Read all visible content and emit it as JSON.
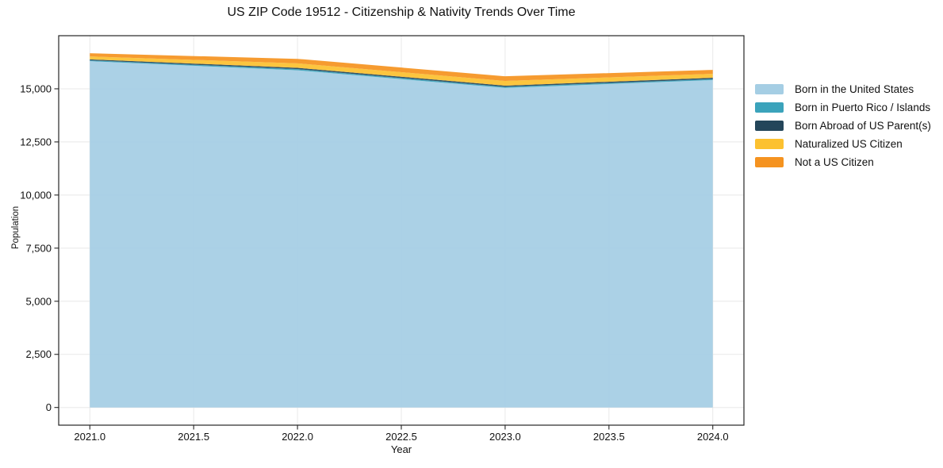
{
  "chart_data": {
    "type": "area",
    "stacked": true,
    "title": "US ZIP Code 19512 - Citizenship & Nativity Trends Over Time",
    "xlabel": "Year",
    "ylabel": "Population",
    "x": [
      2021,
      2022,
      2023,
      2024
    ],
    "series": [
      {
        "name": "Born in the United States",
        "color": "#a5cee4",
        "values": [
          16300,
          15870,
          15040,
          15410
        ]
      },
      {
        "name": "Born in Puerto Rico / Islands",
        "color": "#3ba3bb",
        "values": [
          40,
          55,
          50,
          50
        ]
      },
      {
        "name": "Born Abroad of US Parent(s)",
        "color": "#24465a",
        "values": [
          45,
          65,
          60,
          60
        ]
      },
      {
        "name": "Naturalized US Citizen",
        "color": "#fcc130",
        "values": [
          140,
          210,
          220,
          185
        ]
      },
      {
        "name": "Not a US Citizen",
        "color": "#f59320",
        "values": [
          150,
          210,
          220,
          185
        ]
      }
    ],
    "xlim": [
      2020.85,
      2024.15
    ],
    "ylim": [
      -833,
      17500
    ],
    "x_ticks": [
      {
        "v": 2021.0,
        "label": "2021.0"
      },
      {
        "v": 2021.5,
        "label": "2021.5"
      },
      {
        "v": 2022.0,
        "label": "2022.0"
      },
      {
        "v": 2022.5,
        "label": "2022.5"
      },
      {
        "v": 2023.0,
        "label": "2023.0"
      },
      {
        "v": 2023.5,
        "label": "2023.5"
      },
      {
        "v": 2024.0,
        "label": "2024.0"
      }
    ],
    "y_ticks": [
      {
        "v": 0,
        "label": "0"
      },
      {
        "v": 2500,
        "label": "2,500"
      },
      {
        "v": 5000,
        "label": "5,000"
      },
      {
        "v": 7500,
        "label": "7,500"
      },
      {
        "v": 10000,
        "label": "10,000"
      },
      {
        "v": 12500,
        "label": "12,500"
      },
      {
        "v": 15000,
        "label": "15,000"
      }
    ],
    "grid": true,
    "legend_position": "right-outside",
    "colors": {
      "grid": "#e8e8e8",
      "spine": "#262626",
      "text": "#111111",
      "background": "#ffffff"
    }
  }
}
